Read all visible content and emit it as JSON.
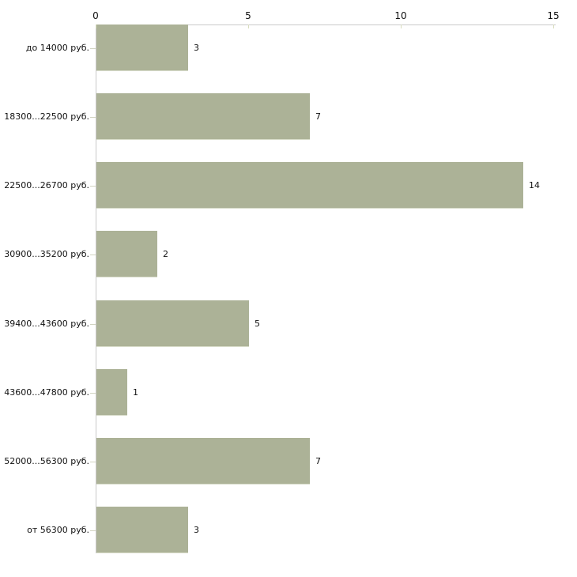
{
  "chart_data": {
    "type": "bar",
    "orientation": "horizontal",
    "title": "",
    "xlabel": "",
    "ylabel": "",
    "categories": [
      "до 14000 руб.",
      "18300...22500 руб.",
      "22500...26700 руб.",
      "30900...35200 руб.",
      "39400...43600 руб.",
      "43600...47800 руб.",
      "52000...56300 руб.",
      "от 56300 руб."
    ],
    "values": [
      3,
      7,
      14,
      2,
      5,
      1,
      7,
      3
    ],
    "value_labels": [
      "3",
      "7",
      "14",
      "2",
      "5",
      "1",
      "7",
      "3"
    ],
    "xticks": [
      0,
      5,
      10,
      15
    ],
    "xlim": [
      0,
      15
    ],
    "grid": false,
    "legend_position": "none",
    "axis_position": "top",
    "colors": {
      "bar": "#acb297",
      "bar_edge": "#d8dcca",
      "axis_line": "#c9c9c9",
      "tick_mark": "#d8dcbe",
      "category_tick": "#d2d4c2",
      "text": "#111111",
      "background": "#ffffff"
    }
  }
}
